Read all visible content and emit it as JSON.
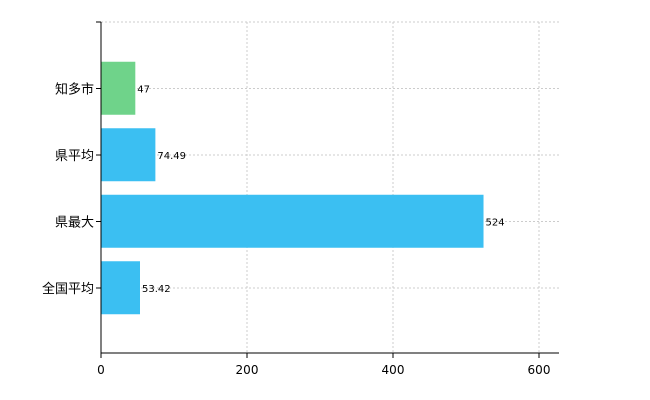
{
  "chart_data": {
    "type": "bar",
    "orientation": "horizontal",
    "categories": [
      "知多市",
      "県平均",
      "県最大",
      "全国平均"
    ],
    "values": [
      47,
      74.49,
      524,
      53.42
    ],
    "value_labels": [
      "47",
      "74.49",
      "524",
      "53.42"
    ],
    "colors": [
      "#6fd38a",
      "#3bbff2",
      "#3bbff2",
      "#3bbff2"
    ],
    "xlim": [
      0,
      630
    ],
    "xticks": [
      0,
      200,
      400,
      600
    ],
    "xtick_labels": [
      "0",
      "200",
      "400",
      "600"
    ],
    "title": "",
    "xlabel": "",
    "ylabel": "",
    "grid": true,
    "legend": false
  }
}
